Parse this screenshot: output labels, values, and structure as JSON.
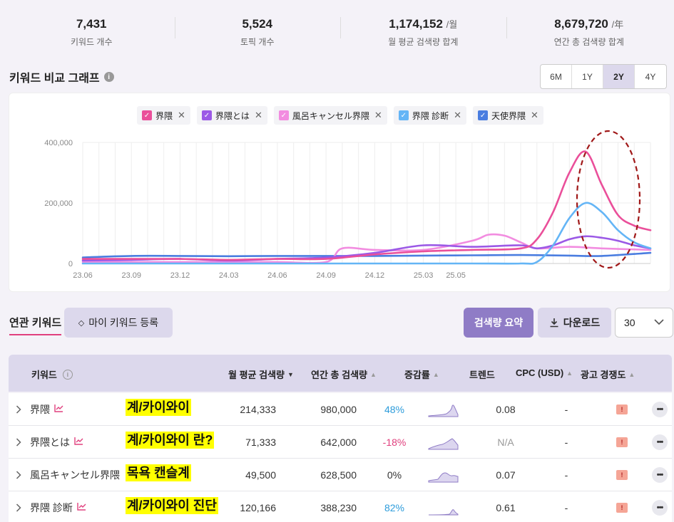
{
  "stats": [
    {
      "value": "7,431",
      "unit": "",
      "label": "키워드 개수"
    },
    {
      "value": "5,524",
      "unit": "",
      "label": "토픽 개수"
    },
    {
      "value": "1,174,152",
      "unit": "/월",
      "label": "월 평균 검색량 합계"
    },
    {
      "value": "8,679,720",
      "unit": "/年",
      "label": "연간 총 검색량 합계"
    }
  ],
  "graph": {
    "title": "키워드 비교 그래프",
    "info": "i",
    "ranges": [
      "6M",
      "1Y",
      "2Y",
      "4Y"
    ],
    "active_range": "2Y"
  },
  "chart_data": {
    "type": "line",
    "x": [
      "23.06",
      "23.09",
      "23.12",
      "24.03",
      "24.06",
      "24.09",
      "24.12",
      "25.03",
      "25.05"
    ],
    "x_ticks": [
      "23.06",
      "23.09",
      "23.12",
      "24.03",
      "24.06",
      "24.09",
      "24.12",
      "25.03",
      "25.05"
    ],
    "y_ticks": [
      "0",
      "200,000",
      "400,000"
    ],
    "ylim": [
      0,
      400000
    ],
    "grid": true,
    "legend_position": "top",
    "series": [
      {
        "name": "界隈",
        "color": "#ea4f9a",
        "points": [
          [
            0,
            15000
          ],
          [
            3,
            15000
          ],
          [
            6,
            15000
          ],
          [
            9,
            12000
          ],
          [
            12,
            15000
          ],
          [
            15,
            15000
          ],
          [
            18,
            30000
          ],
          [
            21,
            40000
          ],
          [
            24,
            45000
          ],
          [
            27,
            50000
          ],
          [
            28,
            80000
          ],
          [
            29,
            170000
          ],
          [
            30,
            300000
          ],
          [
            31,
            370000
          ],
          [
            32,
            260000
          ],
          [
            33,
            160000
          ],
          [
            34,
            125000
          ],
          [
            35,
            110000
          ]
        ]
      },
      {
        "name": "界隈とは",
        "color": "#9b59e6",
        "points": [
          [
            0,
            10000
          ],
          [
            3,
            12000
          ],
          [
            6,
            15000
          ],
          [
            9,
            10000
          ],
          [
            12,
            15000
          ],
          [
            15,
            20000
          ],
          [
            18,
            35000
          ],
          [
            21,
            60000
          ],
          [
            24,
            55000
          ],
          [
            27,
            60000
          ],
          [
            28,
            50000
          ],
          [
            29,
            60000
          ],
          [
            30,
            80000
          ],
          [
            31,
            90000
          ],
          [
            32,
            85000
          ],
          [
            33,
            75000
          ],
          [
            34,
            60000
          ],
          [
            35,
            50000
          ]
        ]
      },
      {
        "name": "風呂キャンセル界隈",
        "color": "#f28ce0",
        "points": [
          [
            0,
            5000
          ],
          [
            3,
            5000
          ],
          [
            6,
            5000
          ],
          [
            9,
            5000
          ],
          [
            12,
            5000
          ],
          [
            15,
            5000
          ],
          [
            16,
            50000
          ],
          [
            18,
            45000
          ],
          [
            21,
            45000
          ],
          [
            24,
            75000
          ],
          [
            25,
            95000
          ],
          [
            26,
            92000
          ],
          [
            27,
            70000
          ],
          [
            28,
            50000
          ],
          [
            30,
            55000
          ],
          [
            32,
            50000
          ],
          [
            35,
            45000
          ]
        ]
      },
      {
        "name": "界隈 診断",
        "color": "#64b5f6",
        "points": [
          [
            0,
            0
          ],
          [
            6,
            0
          ],
          [
            12,
            0
          ],
          [
            18,
            0
          ],
          [
            24,
            0
          ],
          [
            27,
            0
          ],
          [
            28,
            5000
          ],
          [
            29,
            60000
          ],
          [
            30,
            150000
          ],
          [
            31,
            200000
          ],
          [
            32,
            170000
          ],
          [
            33,
            110000
          ],
          [
            34,
            70000
          ],
          [
            35,
            50000
          ]
        ]
      },
      {
        "name": "天使界隈",
        "color": "#4a7de0",
        "points": [
          [
            0,
            20000
          ],
          [
            3,
            25000
          ],
          [
            6,
            25000
          ],
          [
            9,
            24000
          ],
          [
            12,
            25000
          ],
          [
            15,
            25000
          ],
          [
            18,
            25000
          ],
          [
            21,
            26000
          ],
          [
            24,
            27000
          ],
          [
            27,
            28000
          ],
          [
            30,
            26000
          ],
          [
            32,
            25000
          ],
          [
            35,
            35000
          ]
        ]
      }
    ]
  },
  "keywords": {
    "tab_label": "연관 키워드",
    "my_keyword_label": "마이 키워드 등록",
    "summary_label": "검색량 요약",
    "download_label": "다운로드",
    "per_page": "30",
    "headers": {
      "keyword": "키워드",
      "monthly": "월 평균 검색량",
      "yearly": "연간 총 검색량",
      "growth": "증감률",
      "trend": "트렌드",
      "cpc": "CPC (USD)",
      "competition": "광고 경쟁도"
    },
    "rows": [
      {
        "keyword": "界隈",
        "note": "계/카이와이",
        "monthly": "214,333",
        "yearly": "980,000",
        "growth": "48%",
        "growth_sign": "pos",
        "cpc": "0.08",
        "cpc_muted": false,
        "bid": "-",
        "comp": "!"
      },
      {
        "keyword": "界隈とは",
        "note": "계/카이와이 란?",
        "monthly": "71,333",
        "yearly": "642,000",
        "growth": "-18%",
        "growth_sign": "neg",
        "cpc": "N/A",
        "cpc_muted": true,
        "bid": "-",
        "comp": "!"
      },
      {
        "keyword": "風呂キャンセル界隈",
        "note": "목욕 캔슬계",
        "monthly": "49,500",
        "yearly": "628,500",
        "growth": "0%",
        "growth_sign": "zero",
        "cpc": "0.07",
        "cpc_muted": false,
        "bid": "-",
        "comp": "!"
      },
      {
        "keyword": "界隈 診断",
        "note": "계/카이와이 진단",
        "monthly": "120,166",
        "yearly": "388,230",
        "growth": "82%",
        "growth_sign": "pos",
        "cpc": "0.61",
        "cpc_muted": false,
        "bid": "-",
        "comp": "!"
      }
    ]
  }
}
